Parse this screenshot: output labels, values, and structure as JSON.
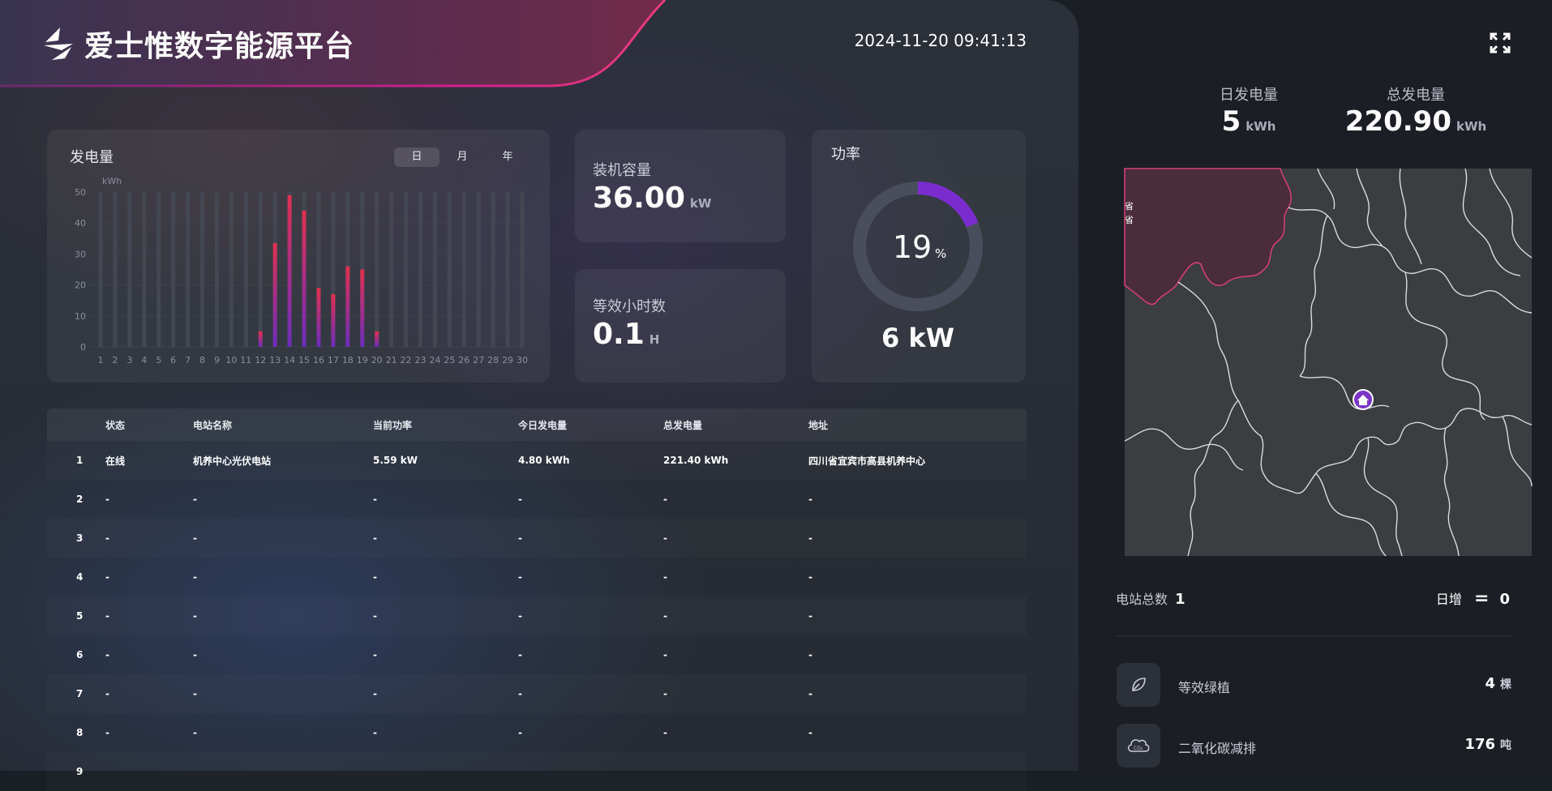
{
  "header": {
    "title": "爱士惟数字能源平台",
    "datetime": "2024-11-20 09:41:13"
  },
  "generation": {
    "title": "发电量",
    "tabs": [
      "日",
      "月",
      "年"
    ],
    "active_tab": 0
  },
  "chart_data": {
    "type": "bar",
    "title": "",
    "ylabel": "kWh",
    "xlabel": "",
    "ylim": [
      0,
      50
    ],
    "yticks": [
      0,
      10,
      20,
      30,
      40,
      50
    ],
    "grid": true,
    "categories": [
      "1",
      "2",
      "3",
      "4",
      "5",
      "6",
      "7",
      "8",
      "9",
      "10",
      "11",
      "12",
      "13",
      "14",
      "15",
      "16",
      "17",
      "18",
      "19",
      "20",
      "21",
      "22",
      "23",
      "24",
      "25",
      "26",
      "27",
      "28",
      "29",
      "30"
    ],
    "values": [
      0,
      0,
      0,
      0,
      0,
      0,
      0,
      0,
      0,
      0,
      0,
      5,
      33.5,
      49,
      44,
      19,
      17,
      26,
      25,
      5,
      0,
      0,
      0,
      0,
      0,
      0,
      0,
      0,
      0,
      0
    ],
    "colors": {
      "bar_top": "#e0314f",
      "bar_bottom": "#6a2dbb",
      "track": "#454a55"
    }
  },
  "capacity": {
    "label": "装机容量",
    "value": "36.00",
    "unit": "kW"
  },
  "hours": {
    "label": "等效小时数",
    "value": "0.1",
    "unit": "H"
  },
  "power": {
    "title": "功率",
    "percent": 19,
    "percent_text": "19",
    "percent_sign": "%",
    "value": "6 kW",
    "color": "#7a2ccf"
  },
  "table": {
    "headers": [
      "",
      "状态",
      "电站名称",
      "当前功率",
      "今日发电量",
      "总发电量",
      "地址"
    ],
    "rows": [
      [
        "1",
        "在线",
        "机养中心光伏电站",
        "5.59 kW",
        "4.80 kWh",
        "221.40 kWh",
        "四川省宜宾市高县机养中心"
      ],
      [
        "2",
        "-",
        "-",
        "-",
        "-",
        "-",
        "-"
      ],
      [
        "3",
        "-",
        "-",
        "-",
        "-",
        "-",
        "-"
      ],
      [
        "4",
        "-",
        "-",
        "-",
        "-",
        "-",
        "-"
      ],
      [
        "5",
        "-",
        "-",
        "-",
        "-",
        "-",
        "-"
      ],
      [
        "6",
        "-",
        "-",
        "-",
        "-",
        "-",
        "-"
      ],
      [
        "7",
        "-",
        "-",
        "-",
        "-",
        "-",
        "-"
      ],
      [
        "8",
        "-",
        "-",
        "-",
        "-",
        "-",
        "-"
      ],
      [
        "9",
        "",
        "",
        "",
        "",
        "",
        ""
      ]
    ]
  },
  "summary": {
    "daily": {
      "label": "日发电量",
      "value": "5",
      "unit": "kWh"
    },
    "total": {
      "label": "总发电量",
      "value": "220.90",
      "unit": "kWh"
    }
  },
  "map": {
    "highlight_color": "#5a2a40",
    "border_color": "#e0e2e8",
    "marker_color": "#7b35c8",
    "edge_label": "省"
  },
  "stations": {
    "label": "电站总数",
    "count": "1",
    "inc_label": "日增",
    "inc_symbol": "=",
    "inc_value": "0"
  },
  "eco": [
    {
      "icon": "leaf-icon",
      "label": "等效绿植",
      "value": "4",
      "unit": "棵"
    },
    {
      "icon": "co2-cloud-icon",
      "label": "二氧化碳减排",
      "value": "176",
      "unit": "吨"
    }
  ]
}
